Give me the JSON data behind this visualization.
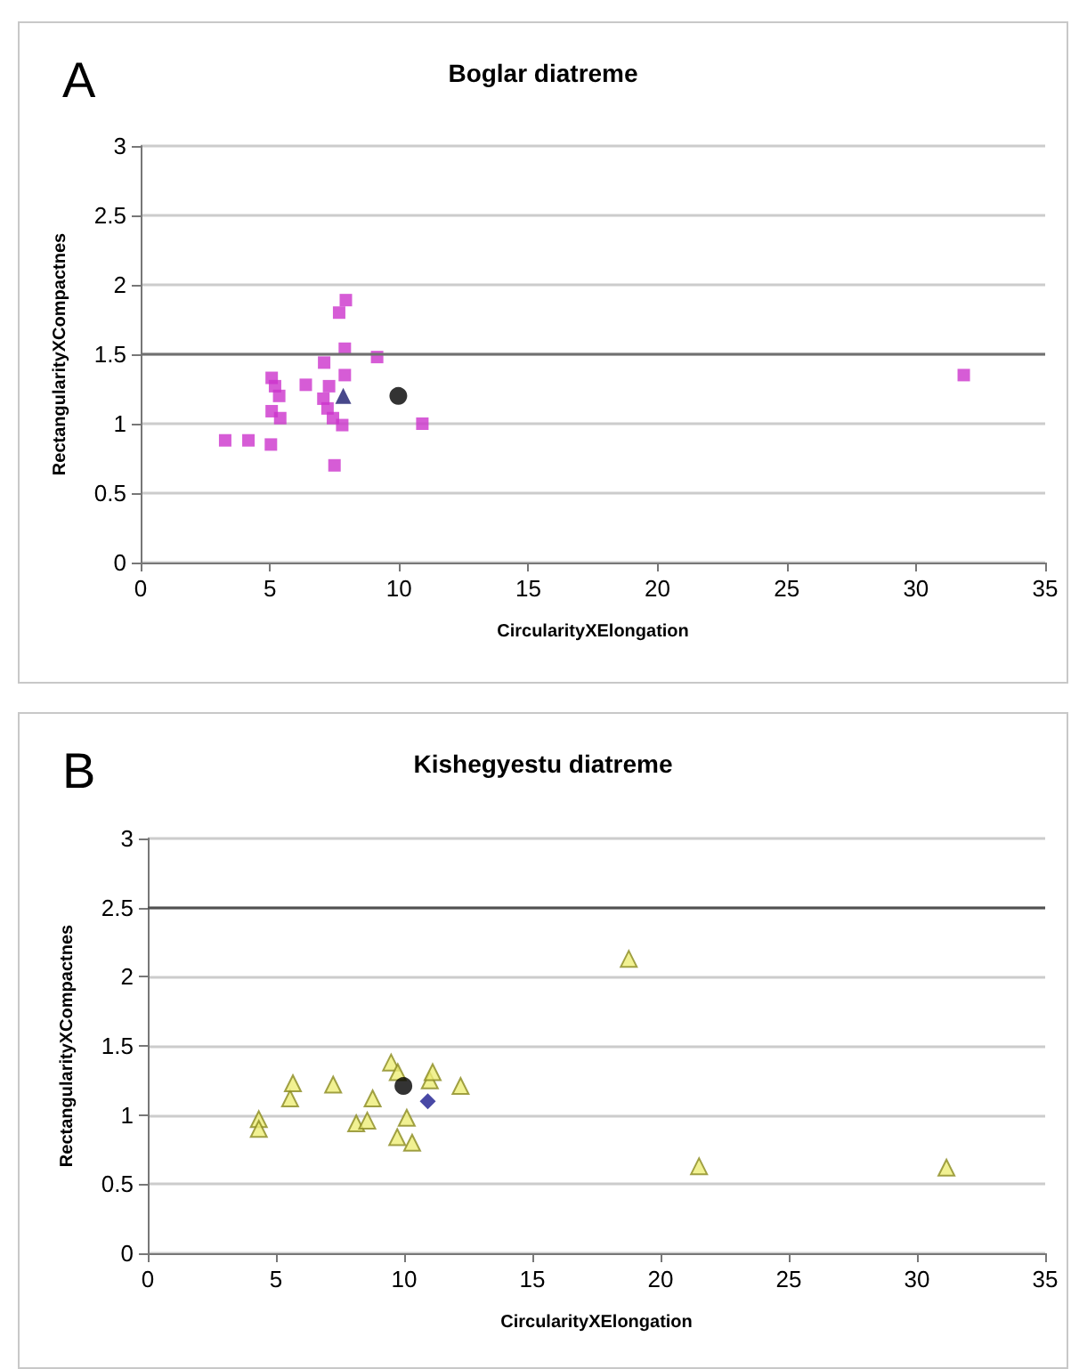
{
  "chart_data": [
    {
      "type": "scatter",
      "title": "Boglar diatreme",
      "xlabel": "CircularityXElongation",
      "ylabel": "RectangularityXCompactnes",
      "annotations": [
        "A"
      ],
      "xlim": [
        0,
        35
      ],
      "xticks": [
        0,
        5,
        10,
        15,
        20,
        25,
        30,
        35
      ],
      "ylim": [
        0,
        3
      ],
      "yticks": [
        0,
        0.5,
        1,
        1.5,
        2,
        2.5,
        3
      ],
      "grid": "y",
      "ref_lines": [
        {
          "axis": "y",
          "value": 1.5,
          "color": "#707070"
        }
      ],
      "series": [
        {
          "color": "#cc33cc",
          "marker": "square",
          "x": [
            3.27,
            4.17,
            5.04,
            5.07,
            5.4,
            5.07,
            5.2,
            5.36,
            6.39,
            7.1,
            7.29,
            7.07,
            7.23,
            7.44,
            7.5,
            7.8,
            7.9,
            7.9,
            7.68,
            7.94,
            9.15,
            10.9,
            31.85
          ],
          "values": [
            0.88,
            0.88,
            0.85,
            1.09,
            1.04,
            1.33,
            1.27,
            1.2,
            1.28,
            1.44,
            1.27,
            1.18,
            1.11,
            1.04,
            0.7,
            0.99,
            1.35,
            1.54,
            1.8,
            1.89,
            1.48,
            1.0,
            1.35
          ]
        },
        {
          "color": "#1a1a6e",
          "marker": "triangle",
          "x": [
            7.84
          ],
          "values": [
            1.2
          ]
        },
        {
          "color": "#000000",
          "marker": "circle",
          "x": [
            9.97
          ],
          "values": [
            1.2
          ]
        }
      ]
    },
    {
      "type": "scatter",
      "title": "Kishegyestu diatreme",
      "xlabel": "CircularityXElongation",
      "ylabel": "RectangularityXCompactnes",
      "annotations": [
        "B"
      ],
      "xlim": [
        0,
        35
      ],
      "xticks": [
        0,
        5,
        10,
        15,
        20,
        25,
        30,
        35
      ],
      "ylim": [
        0,
        3
      ],
      "yticks": [
        0,
        0.5,
        1,
        1.5,
        2,
        2.5,
        3
      ],
      "grid": "y",
      "ref_lines": [
        {
          "axis": "y",
          "value": 2.5,
          "color": "#505050"
        }
      ],
      "series": [
        {
          "color": "#eeee77",
          "marker": "triangle",
          "x": [
            4.33,
            4.33,
            5.55,
            5.66,
            7.23,
            8.13,
            8.56,
            8.77,
            9.49,
            9.75,
            9.73,
            10.1,
            10.31,
            11.0,
            11.11,
            12.2,
            18.76,
            21.5,
            31.15
          ],
          "values": [
            0.97,
            0.9,
            1.12,
            1.23,
            1.22,
            0.94,
            0.96,
            1.12,
            1.38,
            1.31,
            0.84,
            0.98,
            0.8,
            1.25,
            1.31,
            1.21,
            2.13,
            0.63,
            0.62
          ]
        },
        {
          "color": "#000000",
          "marker": "circle",
          "x": [
            9.97
          ],
          "values": [
            1.21
          ]
        },
        {
          "color": "#1a1a8e",
          "marker": "diamond",
          "x": [
            10.92
          ],
          "values": [
            1.1
          ]
        }
      ]
    }
  ]
}
